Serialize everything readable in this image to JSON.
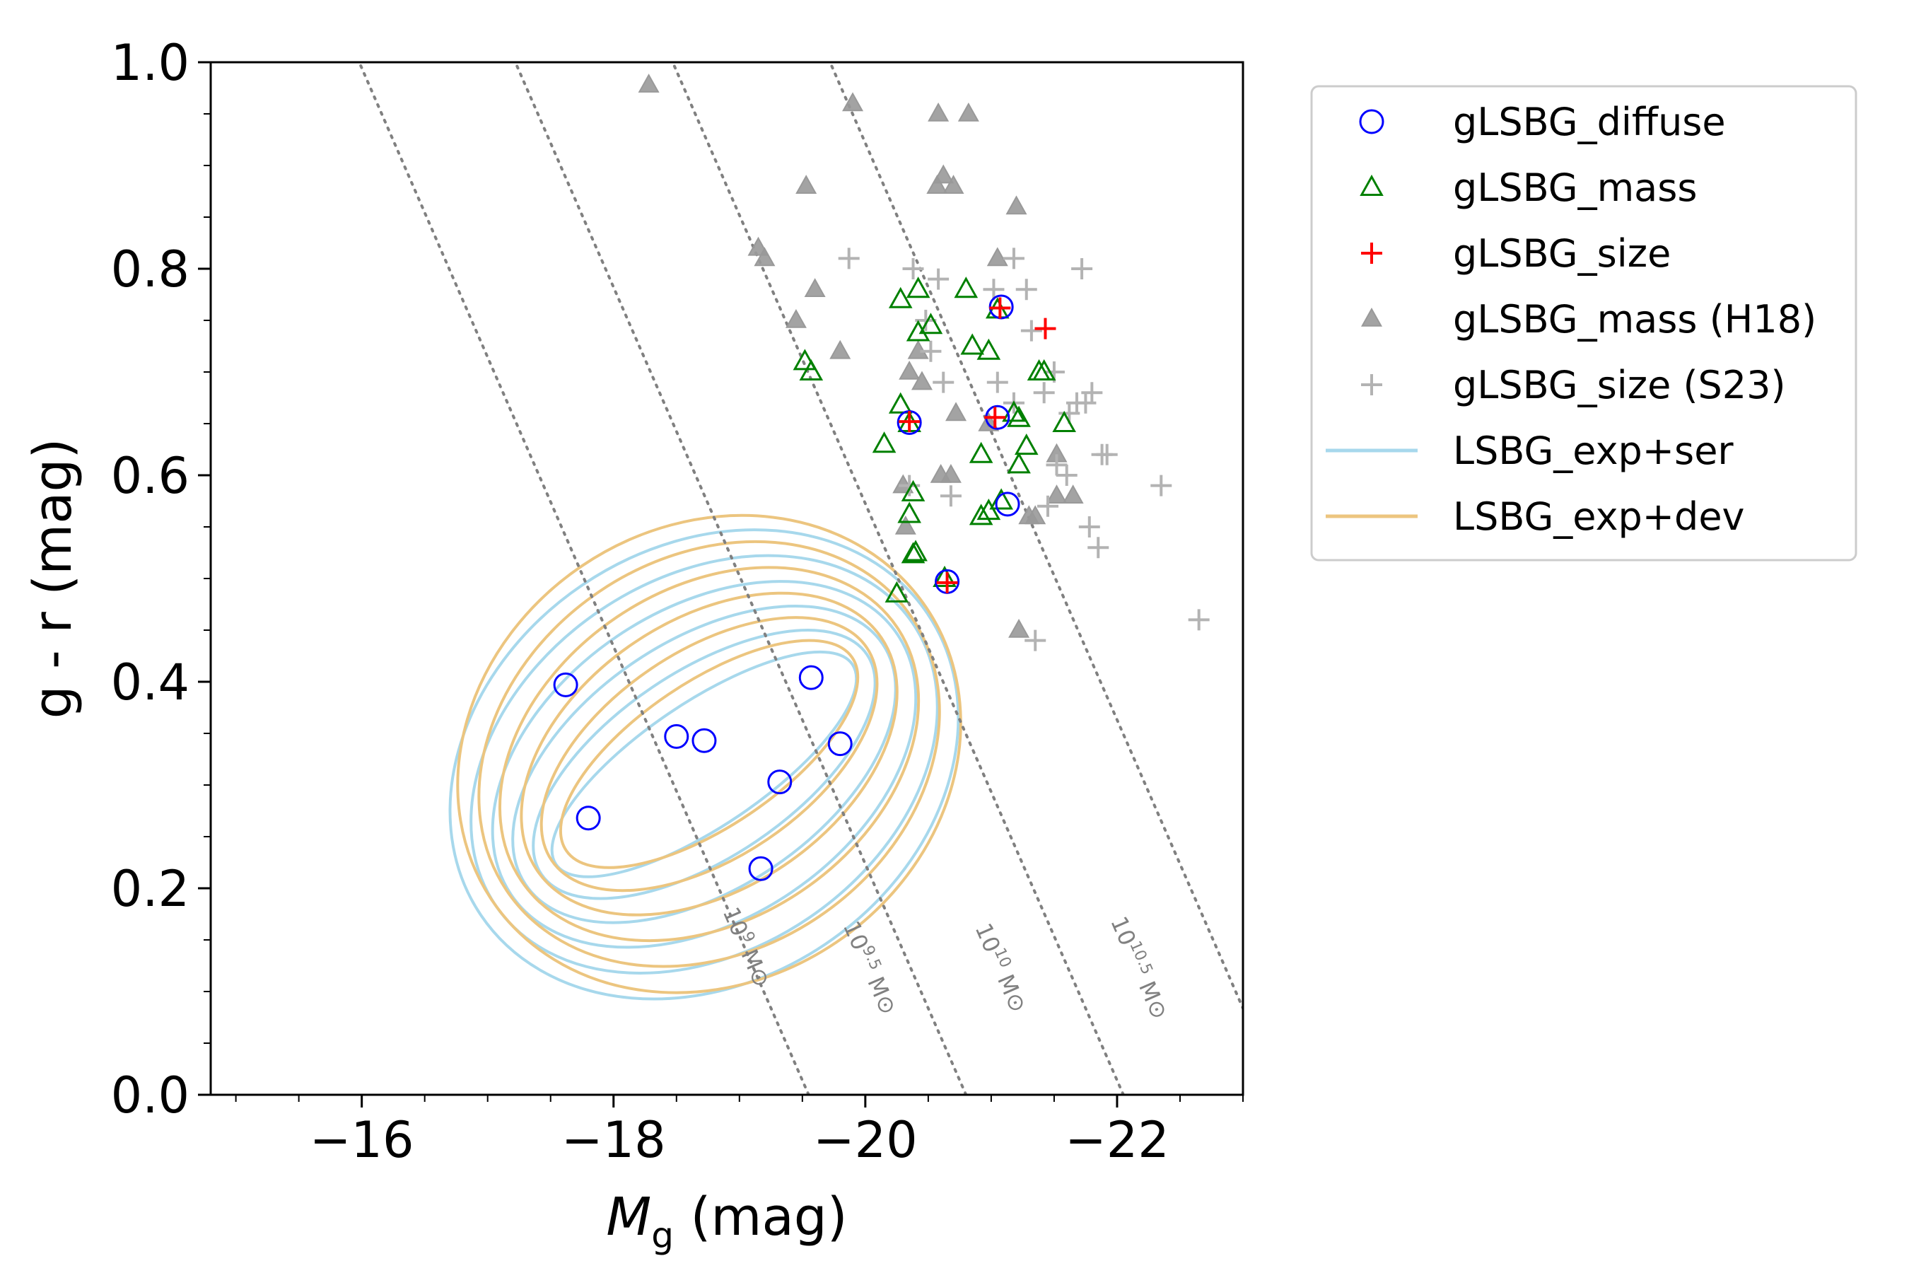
{
  "chart_data": {
    "type": "scatter",
    "xlabel": "M_g (mag)",
    "xlabel_main": "M",
    "xlabel_sub": "g",
    "xlabel_unit": " (mag)",
    "ylabel": "g - r (mag)",
    "xlim": [
      -14.8,
      -23.0
    ],
    "ylim": [
      0.0,
      1.0
    ],
    "xticks": [
      -16,
      -18,
      -20,
      -22
    ],
    "xtick_labels": [
      "−16",
      "−18",
      "−20",
      "−22"
    ],
    "yticks": [
      0.0,
      0.2,
      0.4,
      0.6,
      0.8,
      1.0
    ],
    "ytick_labels": [
      "0.0",
      "0.2",
      "0.4",
      "0.6",
      "0.8",
      "1.0"
    ],
    "legend_position": "outside-right",
    "colors": {
      "diffuse": "#0000ff",
      "mass": "#008000",
      "size": "#ff0000",
      "h18": "#999999",
      "s23": "#b3b3b3",
      "exp_ser": "#a7d8ec",
      "exp_dev": "#ecc57f",
      "iso": "#808080"
    },
    "series": [
      {
        "name": "gLSBG_diffuse",
        "marker": "open-circle",
        "x": [
          -17.62,
          -17.8,
          -18.5,
          -18.72,
          -19.32,
          -19.57,
          -19.8,
          -19.17,
          -20.35,
          -20.65,
          -21.05,
          -21.08,
          -21.13
        ],
        "y": [
          0.397,
          0.268,
          0.347,
          0.343,
          0.303,
          0.404,
          0.34,
          0.219,
          0.651,
          0.497,
          0.656,
          0.763,
          0.572
        ]
      },
      {
        "name": "gLSBG_mass",
        "marker": "open-triangle",
        "x": [
          -20.28,
          -20.42,
          -20.52,
          -20.8,
          -20.42,
          -20.85,
          -20.98,
          -21.05,
          -21.42,
          -21.38,
          -20.28,
          -20.35,
          -20.15,
          -20.92,
          -21.22,
          -21.28,
          -21.58,
          -20.92,
          -21.18,
          -21.22,
          -20.98,
          -20.38,
          -20.35,
          -20.4,
          -20.38,
          -20.25,
          -20.63,
          -19.57,
          -19.52,
          -21.08
        ],
        "y": [
          0.77,
          0.78,
          0.745,
          0.78,
          0.738,
          0.725,
          0.72,
          0.76,
          0.7,
          0.7,
          0.668,
          0.65,
          0.63,
          0.62,
          0.61,
          0.628,
          0.65,
          0.56,
          0.66,
          0.655,
          0.565,
          0.583,
          0.562,
          0.525,
          0.523,
          0.485,
          0.5,
          0.7,
          0.71,
          0.575
        ]
      },
      {
        "name": "gLSBG_size",
        "marker": "plus",
        "x": [
          -21.07,
          -21.43,
          -20.35,
          -21.03,
          -20.65
        ],
        "y": [
          0.762,
          0.742,
          0.652,
          0.656,
          0.496
        ]
      },
      {
        "name": "gLSBG_mass (H18)",
        "marker": "filled-triangle",
        "x": [
          -18.28,
          -19.9,
          -20.58,
          -20.82,
          -19.53,
          -20.57,
          -20.62,
          -20.7,
          -21.2,
          -19.15,
          -19.2,
          -19.6,
          -19.45,
          -19.8,
          -20.42,
          -21.05,
          -20.35,
          -20.45,
          -20.72,
          -20.68,
          -20.98,
          -21.52,
          -21.65,
          -20.3,
          -20.6,
          -21.3,
          -21.35,
          -21.52,
          -21.22,
          -20.32
        ],
        "y": [
          0.978,
          0.96,
          0.95,
          0.95,
          0.88,
          0.88,
          0.89,
          0.88,
          0.86,
          0.82,
          0.81,
          0.78,
          0.75,
          0.72,
          0.72,
          0.81,
          0.7,
          0.69,
          0.66,
          0.6,
          0.65,
          0.62,
          0.58,
          0.59,
          0.6,
          0.56,
          0.56,
          0.58,
          0.45,
          0.55
        ]
      },
      {
        "name": "gLSBG_size (S23)",
        "marker": "plus",
        "x": [
          -19.87,
          -20.38,
          -20.58,
          -21.02,
          -21.18,
          -21.72,
          -21.28,
          -21.32,
          -20.52,
          -20.62,
          -21.05,
          -21.18,
          -21.42,
          -21.5,
          -21.62,
          -21.68,
          -21.75,
          -21.8,
          -21.52,
          -21.6,
          -21.45,
          -21.88,
          -21.92,
          -22.35,
          -21.78,
          -21.85,
          -22.65,
          -21.35,
          -20.48,
          -20.35,
          -20.68
        ],
        "y": [
          0.81,
          0.8,
          0.79,
          0.78,
          0.81,
          0.8,
          0.78,
          0.74,
          0.72,
          0.69,
          0.69,
          0.67,
          0.68,
          0.7,
          0.66,
          0.67,
          0.67,
          0.68,
          0.61,
          0.6,
          0.57,
          0.62,
          0.62,
          0.59,
          0.55,
          0.53,
          0.46,
          0.44,
          0.75,
          0.59,
          0.58
        ]
      }
    ],
    "contour_series": [
      {
        "name": "LSBG_exp+ser",
        "levels": [
          {
            "rx": 1.42,
            "ry": 0.06,
            "cx": -18.72,
            "cy": 0.32
          },
          {
            "rx": 1.56,
            "ry": 0.09,
            "cx": -18.72,
            "cy": 0.32
          },
          {
            "rx": 1.71,
            "ry": 0.12,
            "cx": -18.72,
            "cy": 0.32
          },
          {
            "rx": 1.85,
            "ry": 0.15,
            "cx": -18.72,
            "cy": 0.32
          },
          {
            "rx": 2.0,
            "ry": 0.18,
            "cx": -18.72,
            "cy": 0.32
          },
          {
            "rx": 2.14,
            "ry": 0.21,
            "cx": -18.72,
            "cy": 0.32
          }
        ]
      },
      {
        "name": "LSBG_exp+dev",
        "levels": [
          {
            "rx": 1.37,
            "ry": 0.07,
            "cx": -18.76,
            "cy": 0.33
          },
          {
            "rx": 1.51,
            "ry": 0.1,
            "cx": -18.76,
            "cy": 0.33
          },
          {
            "rx": 1.65,
            "ry": 0.13,
            "cx": -18.76,
            "cy": 0.33
          },
          {
            "rx": 1.8,
            "ry": 0.16,
            "cx": -18.76,
            "cy": 0.33
          },
          {
            "rx": 1.94,
            "ry": 0.19,
            "cx": -18.76,
            "cy": 0.33
          },
          {
            "rx": 2.08,
            "ry": 0.22,
            "cx": -18.76,
            "cy": 0.33
          }
        ]
      }
    ],
    "mass_lines": [
      {
        "label_base": "10",
        "label_exp": "9",
        "unit": "M⊙",
        "x_at_0": -19.55,
        "x_at_1": -15.98,
        "label_x": -19.0,
        "label_y": 0.14
      },
      {
        "label_base": "10",
        "label_exp": "9.5",
        "unit": "M⊙",
        "x_at_0": -20.8,
        "x_at_1": -17.22,
        "label_x": -19.98,
        "label_y": 0.12
      },
      {
        "label_base": "10",
        "label_exp": "10",
        "unit": "M⊙",
        "x_at_0": -22.05,
        "x_at_1": -18.47,
        "label_x": -21.02,
        "label_y": 0.12
      },
      {
        "label_base": "10",
        "label_exp": "10.5",
        "unit": "M⊙",
        "x_at_0": -23.3,
        "x_at_1": -19.72,
        "label_x": -22.12,
        "label_y": 0.12
      }
    ],
    "legend": [
      "gLSBG_diffuse",
      "gLSBG_mass",
      "gLSBG_size",
      "gLSBG_mass (H18)",
      "gLSBG_size (S23)",
      "LSBG_exp+ser",
      "LSBG_exp+dev"
    ]
  }
}
